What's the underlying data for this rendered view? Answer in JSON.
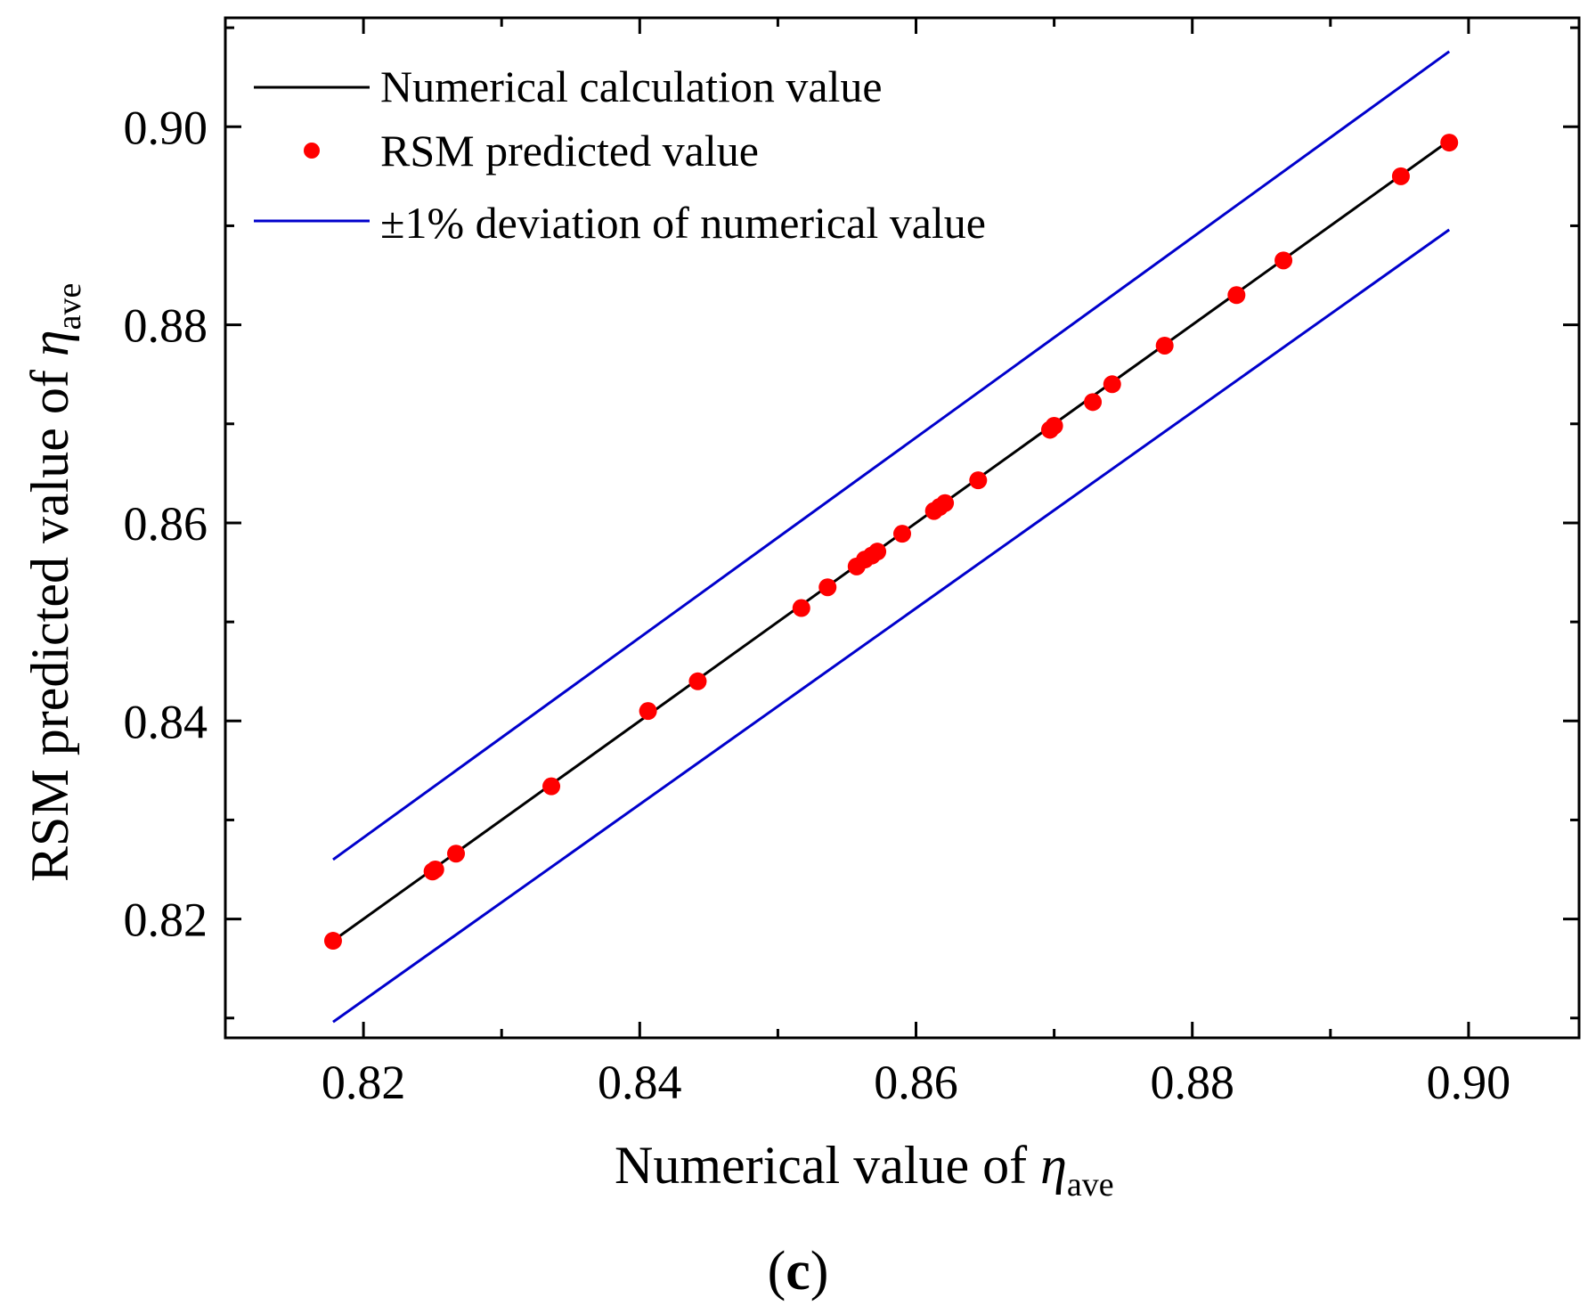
{
  "chart_data": {
    "type": "scatter",
    "xlabel_main": "Numerical value of ",
    "ylabel_main": "RSM predicted value of ",
    "eta_symbol": "η",
    "eta_subscript": "ave",
    "panel_label_open": "(",
    "panel_label_letter": "c",
    "panel_label_close": ")",
    "xlim": [
      0.81,
      0.908
    ],
    "ylim": [
      0.808,
      0.911
    ],
    "x_ticks": [
      0.82,
      0.84,
      0.86,
      0.88,
      0.9
    ],
    "x_tick_labels": [
      "0.82",
      "0.84",
      "0.86",
      "0.88",
      "0.90"
    ],
    "x_minor_ticks": [
      0.83,
      0.85,
      0.87,
      0.89
    ],
    "y_ticks": [
      0.82,
      0.84,
      0.86,
      0.88,
      0.9
    ],
    "y_tick_labels": [
      "0.82",
      "0.84",
      "0.86",
      "0.88",
      "0.90"
    ],
    "y_minor_ticks": [
      0.81,
      0.83,
      0.85,
      0.87,
      0.89,
      0.91
    ],
    "legend": [
      {
        "label": "Numerical calculation value",
        "kind": "line",
        "color": "#000000"
      },
      {
        "label": "RSM predicted value",
        "kind": "marker",
        "color": "#ff0000"
      },
      {
        "label": "±1% deviation of numerical value",
        "kind": "line",
        "color": "#0000cc"
      }
    ],
    "series": [
      {
        "name": "Numerical calculation value",
        "kind": "line",
        "color": "#000000",
        "x": [
          0.8178,
          0.8986
        ],
        "y": [
          0.8178,
          0.8986
        ]
      },
      {
        "name": "+1% deviation",
        "kind": "line",
        "color": "#0000cc",
        "x": [
          0.8178,
          0.8986
        ],
        "y": [
          0.826,
          0.9076
        ]
      },
      {
        "name": "-1% deviation",
        "kind": "line",
        "color": "#0000cc",
        "x": [
          0.8178,
          0.8986
        ],
        "y": [
          0.8096,
          0.8896
        ]
      },
      {
        "name": "RSM predicted value",
        "kind": "marker",
        "color": "#ff0000",
        "x": [
          0.8178,
          0.825,
          0.8252,
          0.8267,
          0.8336,
          0.8406,
          0.8442,
          0.8517,
          0.8536,
          0.8557,
          0.8563,
          0.8568,
          0.8572,
          0.859,
          0.8613,
          0.8617,
          0.8621,
          0.8645,
          0.8697,
          0.87,
          0.8728,
          0.8742,
          0.878,
          0.8832,
          0.8866,
          0.8951,
          0.8986
        ],
        "y": [
          0.8178,
          0.8248,
          0.825,
          0.8266,
          0.8334,
          0.841,
          0.844,
          0.8514,
          0.8535,
          0.8556,
          0.8563,
          0.8567,
          0.8571,
          0.8589,
          0.8612,
          0.8616,
          0.862,
          0.8643,
          0.8694,
          0.8698,
          0.8722,
          0.874,
          0.8779,
          0.883,
          0.8865,
          0.895,
          0.8984
        ]
      }
    ]
  }
}
